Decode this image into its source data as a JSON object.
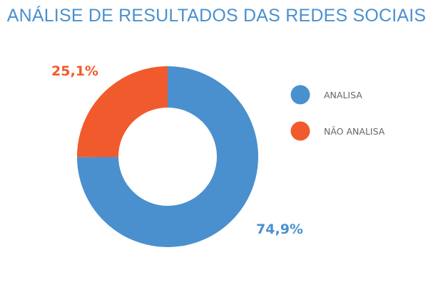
{
  "chart_data": {
    "type": "pie",
    "title": "ANÁLISE DE RESULTADOS DAS REDES SOCIAIS",
    "donut": true,
    "categories": [
      "ANALISA",
      "NÃO ANALISA"
    ],
    "values": [
      74.9,
      25.1
    ],
    "labels": [
      "74,9%",
      "25,1%"
    ],
    "colors": [
      "#4a90cf",
      "#f15a2c"
    ],
    "legend_position": "right"
  }
}
